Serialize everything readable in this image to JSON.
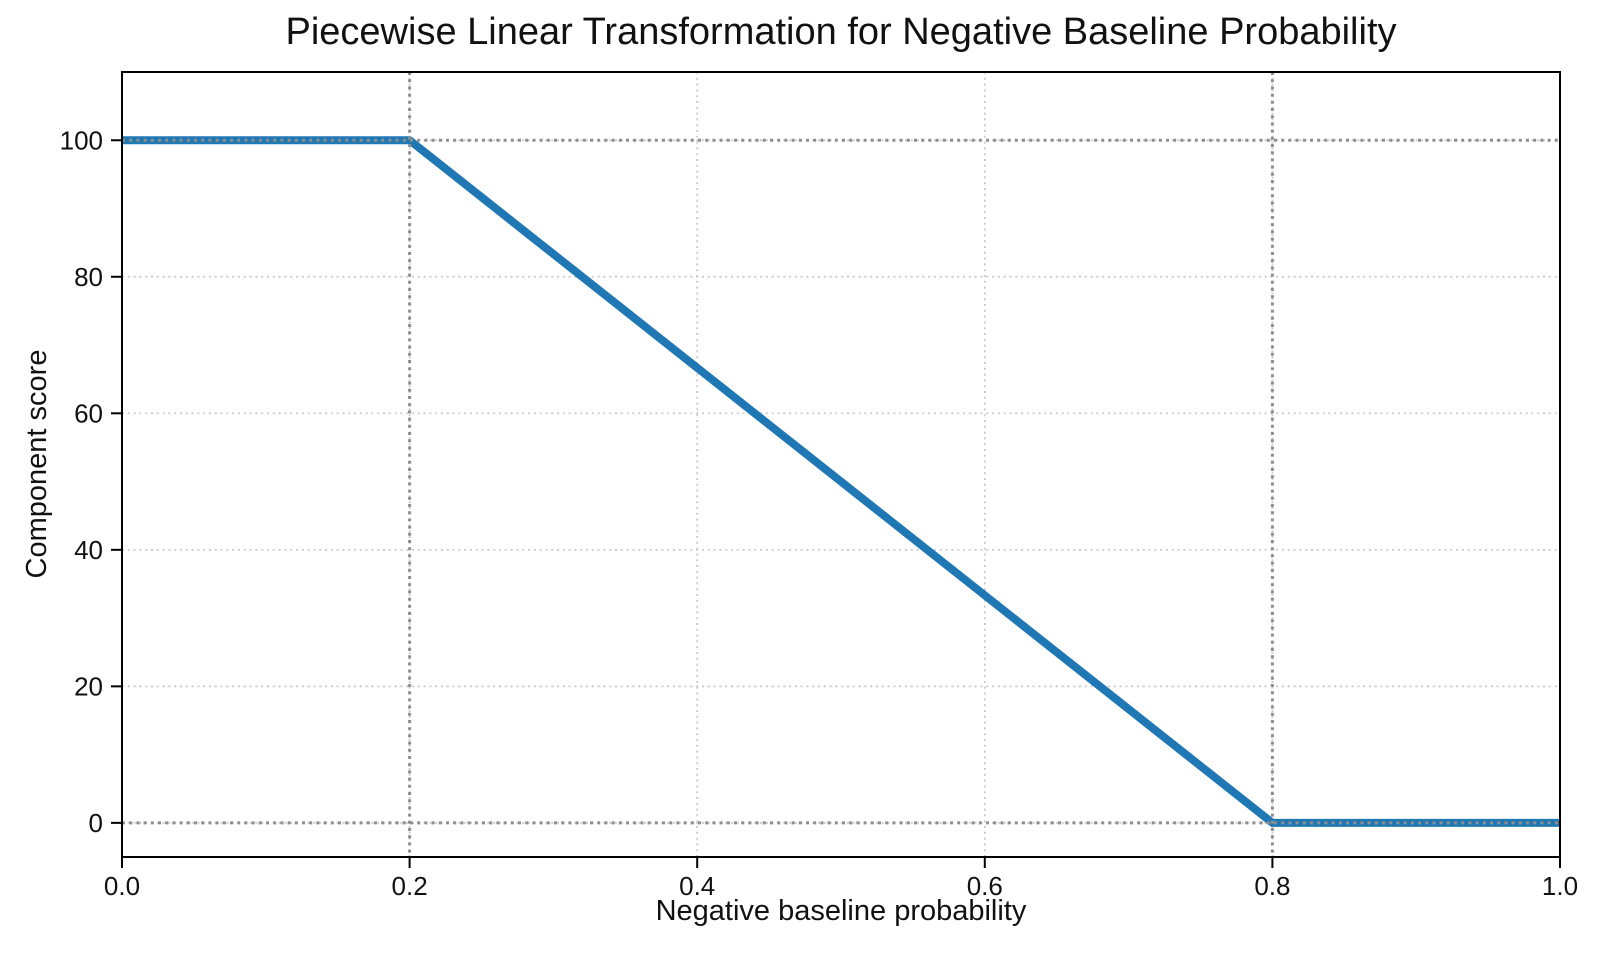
{
  "figure": {
    "background": "#ffffff"
  },
  "chart_data": {
    "type": "line",
    "title": "Piecewise Linear Transformation for Negative Baseline Probability",
    "xlabel": "Negative baseline probability",
    "ylabel": "Component score",
    "xlim": [
      0.0,
      1.0
    ],
    "ylim": [
      -5,
      110
    ],
    "xticks": {
      "values": [
        0.0,
        0.2,
        0.4,
        0.6,
        0.8,
        1.0
      ],
      "labels": [
        "0.0",
        "0.2",
        "0.4",
        "0.6",
        "0.8",
        "1.0"
      ]
    },
    "yticks": {
      "values": [
        0,
        20,
        40,
        60,
        80,
        100
      ],
      "labels": [
        "0",
        "20",
        "40",
        "60",
        "80",
        "100"
      ]
    },
    "grid": true,
    "grid_style": "dotted",
    "legend": false,
    "series": [
      {
        "name": "piecewise-linear-transform",
        "x": [
          0.0,
          0.2,
          0.8,
          1.0
        ],
        "y": [
          100,
          100,
          0,
          0
        ],
        "color": "#1f77b4",
        "line_width": 8,
        "style": "solid"
      }
    ],
    "reference_lines": [
      {
        "axis": "y",
        "value": 100,
        "style": "dotted",
        "color": "#8e8e8e"
      },
      {
        "axis": "y",
        "value": 0,
        "style": "dotted",
        "color": "#8e8e8e"
      },
      {
        "axis": "x",
        "value": 0.2,
        "style": "dotted",
        "color": "#8e8e8e"
      },
      {
        "axis": "x",
        "value": 0.8,
        "style": "dotted",
        "color": "#8e8e8e"
      }
    ],
    "colors": {
      "line": "#1f77b4",
      "grid": "#c7c7c7",
      "reference": "#8e8e8e",
      "spine": "#000000",
      "text": "#111111"
    }
  }
}
